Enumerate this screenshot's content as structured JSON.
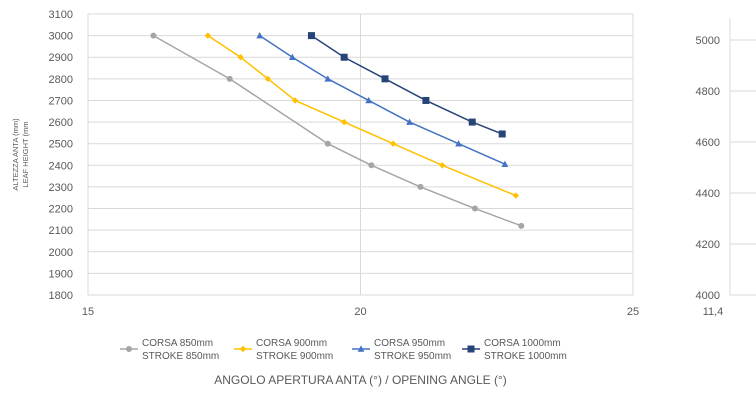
{
  "chart_data": [
    {
      "type": "line",
      "xlabel": "ANGOLO APERTURA ANTA (°) / OPENING ANGLE (°)",
      "ylabel": [
        "ALTEZZA ANTA (mm)",
        "LEAF HEIGHT (mm"
      ],
      "xlim": [
        15,
        25
      ],
      "ylim": [
        1800,
        3100
      ],
      "xticks": [
        15,
        20,
        25
      ],
      "yticks": [
        1800,
        1900,
        2000,
        2100,
        2200,
        2300,
        2400,
        2500,
        2600,
        2700,
        2800,
        2900,
        3000,
        3100
      ],
      "grid": true,
      "legend_position": "bottom",
      "series": [
        {
          "name": [
            "CORSA 850mm",
            "STROKE 850mm"
          ],
          "color": "#a5a5a5",
          "marker": "circle",
          "x": [
            16.2,
            17.6,
            19.4,
            20.2,
            21.1,
            22.1,
            22.95
          ],
          "y": [
            3000,
            2800,
            2500,
            2400,
            2300,
            2200,
            2120
          ]
        },
        {
          "name": [
            "CORSA 900mm",
            "STROKE 900mm"
          ],
          "color": "#ffc000",
          "marker": "diamond",
          "x": [
            17.2,
            17.8,
            18.3,
            18.8,
            19.7,
            20.6,
            21.5,
            22.85
          ],
          "y": [
            3000,
            2900,
            2800,
            2700,
            2600,
            2500,
            2400,
            2260
          ]
        },
        {
          "name": [
            "CORSA 950mm",
            "STROKE 950mm"
          ],
          "color": "#4472c4",
          "marker": "triangle",
          "x": [
            18.15,
            18.75,
            19.4,
            20.15,
            20.9,
            21.8,
            22.65
          ],
          "y": [
            3000,
            2900,
            2800,
            2700,
            2600,
            2500,
            2405
          ]
        },
        {
          "name": [
            "CORSA 1000mm",
            "STROKE 1000mm"
          ],
          "color": "#264478",
          "marker": "square",
          "x": [
            19.1,
            19.7,
            20.45,
            21.2,
            22.05,
            22.6
          ],
          "y": [
            3000,
            2900,
            2800,
            2700,
            2600,
            2545
          ]
        }
      ]
    },
    {
      "type": "line",
      "xlim_start_label": "11,4",
      "ylim": [
        4000,
        5000
      ],
      "yticks": [
        4000,
        4200,
        4400,
        4600,
        4800,
        5000
      ],
      "grid": true
    }
  ]
}
